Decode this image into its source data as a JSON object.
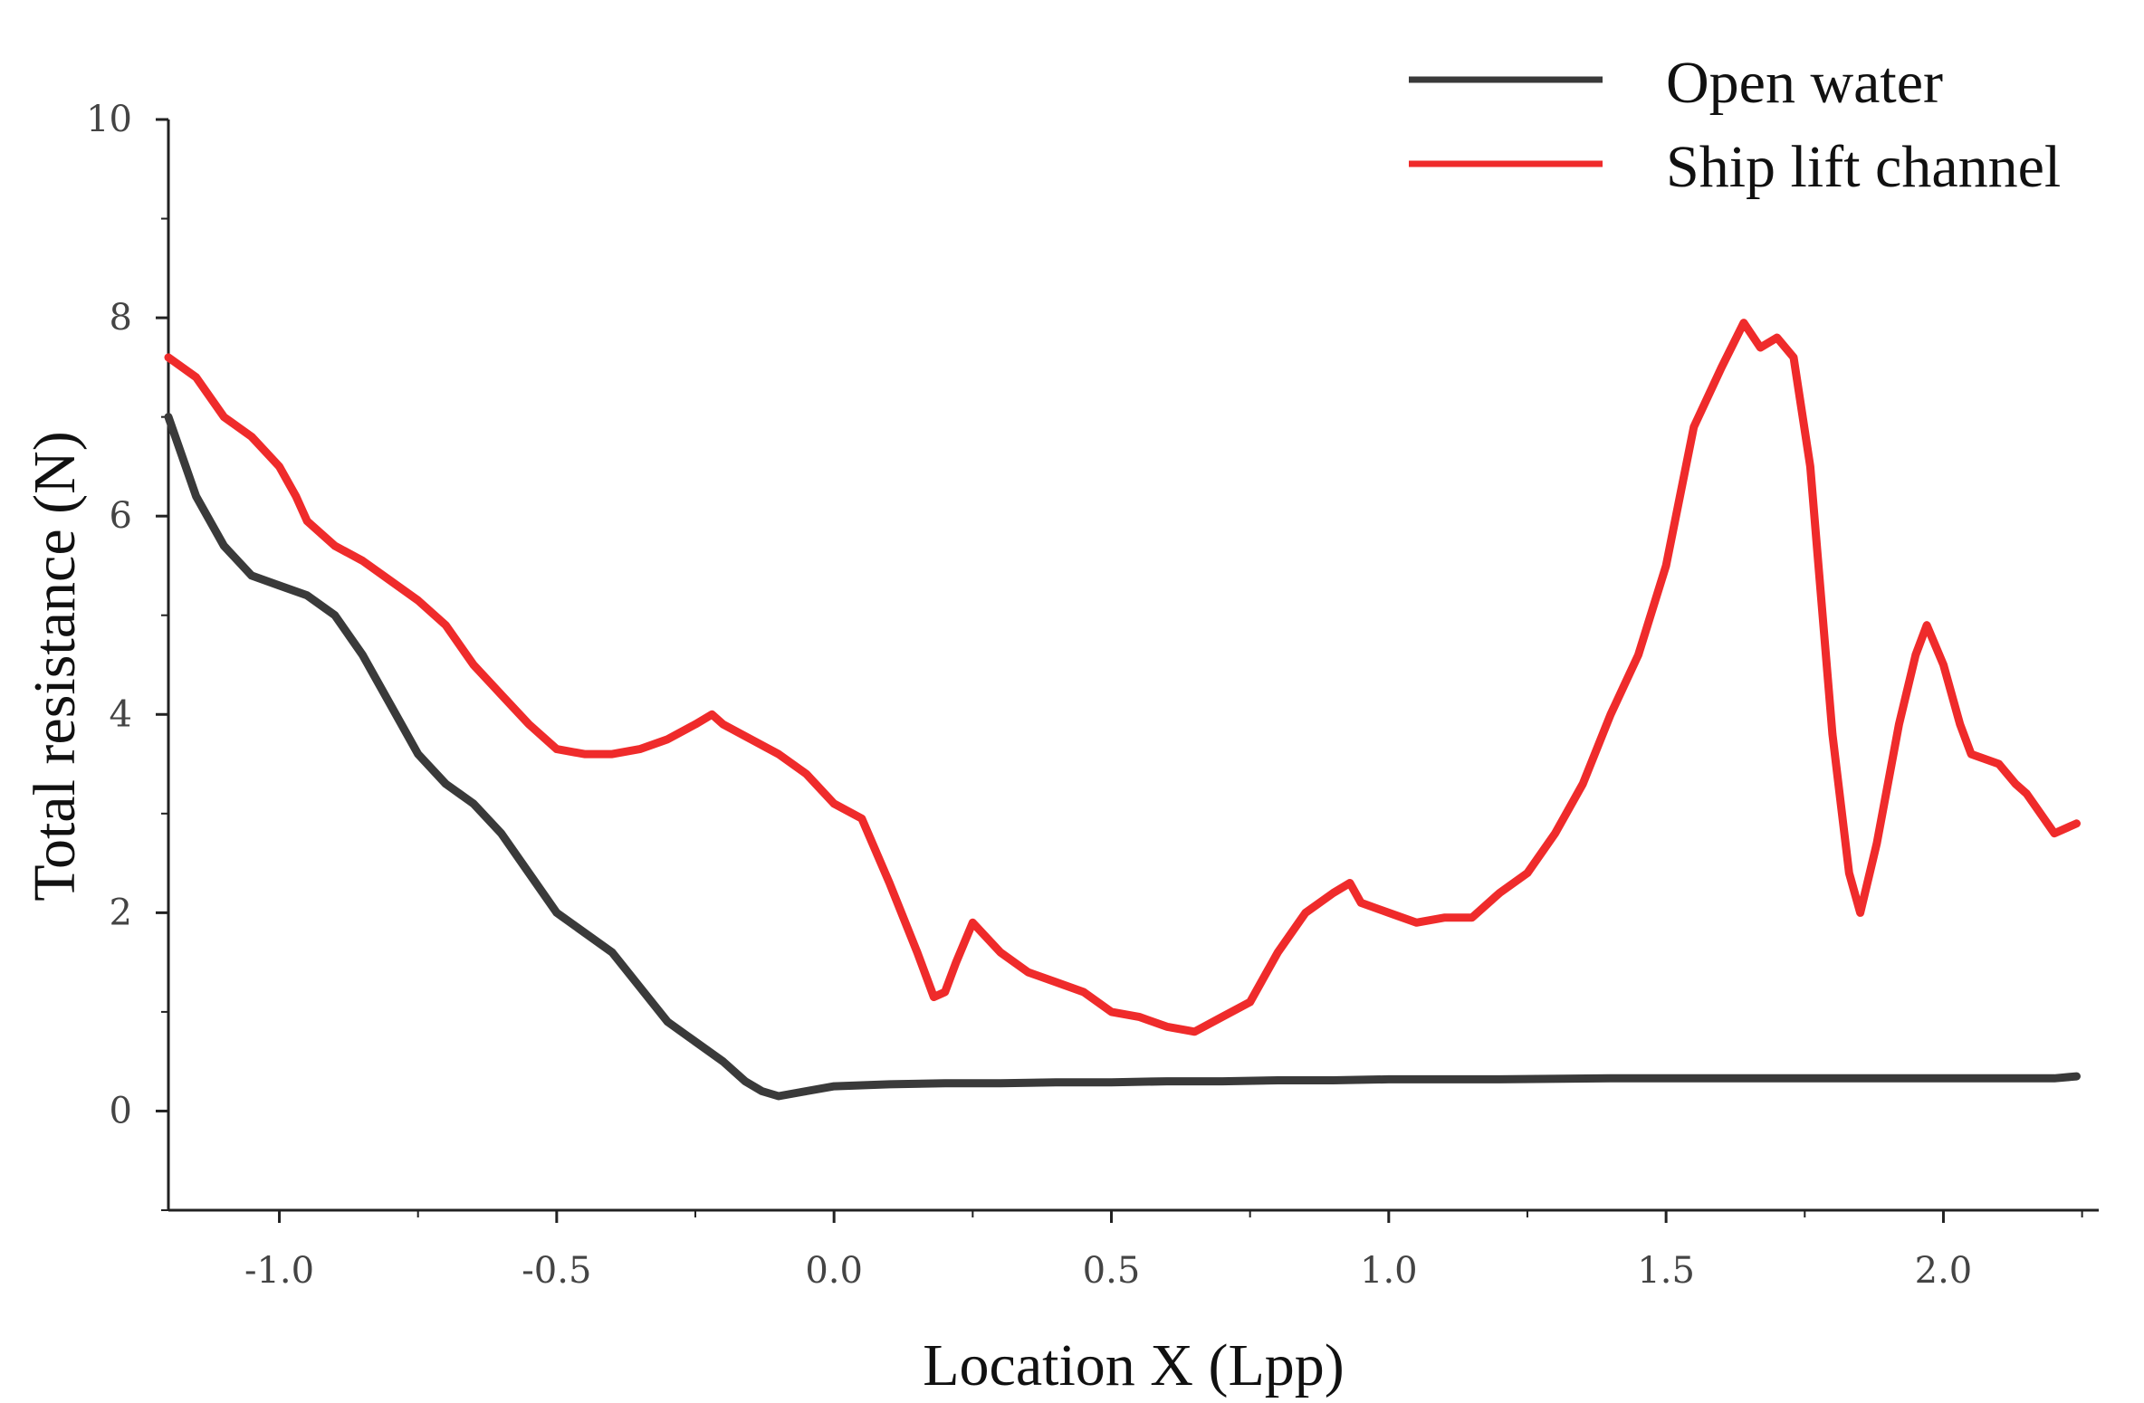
{
  "chart_data": {
    "type": "line",
    "xlabel": "Location X (Lpp)",
    "ylabel": "Total resistance (N)",
    "xlim": [
      -1.2,
      2.28
    ],
    "ylim": [
      -1,
      10
    ],
    "x_ticks": [
      -1.0,
      -0.5,
      0.0,
      0.5,
      1.0,
      1.5,
      2.0
    ],
    "x_tick_labels": [
      "-1.0",
      "-0.5",
      "0.0",
      "0.5",
      "1.0",
      "1.5",
      "2.0"
    ],
    "y_ticks": [
      0,
      2,
      4,
      6,
      8,
      10
    ],
    "y_tick_labels": [
      "0",
      "2",
      "4",
      "6",
      "8",
      "10"
    ],
    "grid": false,
    "legend_position": "top-right",
    "series": [
      {
        "name": "Open water",
        "color": "#3a3a3a",
        "x": [
          -1.2,
          -1.15,
          -1.1,
          -1.05,
          -1.0,
          -0.95,
          -0.9,
          -0.85,
          -0.8,
          -0.75,
          -0.7,
          -0.65,
          -0.6,
          -0.55,
          -0.5,
          -0.45,
          -0.4,
          -0.35,
          -0.3,
          -0.25,
          -0.2,
          -0.16,
          -0.13,
          -0.1,
          -0.05,
          0.0,
          0.1,
          0.2,
          0.3,
          0.4,
          0.5,
          0.6,
          0.7,
          0.8,
          0.9,
          1.0,
          1.2,
          1.4,
          1.6,
          1.8,
          2.0,
          2.2,
          2.24
        ],
        "y": [
          7.0,
          6.2,
          5.7,
          5.4,
          5.3,
          5.2,
          5.0,
          4.6,
          4.1,
          3.6,
          3.3,
          3.1,
          2.8,
          2.4,
          2.0,
          1.8,
          1.6,
          1.25,
          0.9,
          0.7,
          0.5,
          0.3,
          0.2,
          0.15,
          0.2,
          0.25,
          0.27,
          0.28,
          0.28,
          0.29,
          0.29,
          0.3,
          0.3,
          0.31,
          0.31,
          0.32,
          0.32,
          0.33,
          0.33,
          0.33,
          0.33,
          0.33,
          0.35
        ]
      },
      {
        "name": "Ship lift channel",
        "color": "#ef2b2b",
        "x": [
          -1.2,
          -1.15,
          -1.1,
          -1.05,
          -1.0,
          -0.97,
          -0.95,
          -0.9,
          -0.85,
          -0.8,
          -0.75,
          -0.7,
          -0.65,
          -0.6,
          -0.55,
          -0.5,
          -0.45,
          -0.4,
          -0.35,
          -0.3,
          -0.25,
          -0.22,
          -0.2,
          -0.15,
          -0.1,
          -0.05,
          0.0,
          0.05,
          0.1,
          0.15,
          0.18,
          0.2,
          0.22,
          0.25,
          0.3,
          0.35,
          0.4,
          0.45,
          0.5,
          0.55,
          0.6,
          0.65,
          0.7,
          0.75,
          0.8,
          0.85,
          0.9,
          0.93,
          0.95,
          1.0,
          1.05,
          1.1,
          1.15,
          1.2,
          1.25,
          1.3,
          1.35,
          1.4,
          1.45,
          1.5,
          1.55,
          1.6,
          1.64,
          1.67,
          1.7,
          1.73,
          1.76,
          1.8,
          1.83,
          1.85,
          1.88,
          1.92,
          1.95,
          1.97,
          2.0,
          2.03,
          2.05,
          2.1,
          2.13,
          2.15,
          2.2,
          2.24
        ],
        "y": [
          7.6,
          7.4,
          7.0,
          6.8,
          6.5,
          6.2,
          5.95,
          5.7,
          5.55,
          5.35,
          5.15,
          4.9,
          4.5,
          4.2,
          3.9,
          3.65,
          3.6,
          3.6,
          3.65,
          3.75,
          3.9,
          4.0,
          3.9,
          3.75,
          3.6,
          3.4,
          3.1,
          2.95,
          2.3,
          1.6,
          1.15,
          1.2,
          1.5,
          1.9,
          1.6,
          1.4,
          1.3,
          1.2,
          1.0,
          0.95,
          0.85,
          0.8,
          0.95,
          1.1,
          1.6,
          2.0,
          2.2,
          2.3,
          2.1,
          2.0,
          1.9,
          1.95,
          1.95,
          2.2,
          2.4,
          2.8,
          3.3,
          4.0,
          4.6,
          5.5,
          6.9,
          7.5,
          7.95,
          7.7,
          7.8,
          7.6,
          6.5,
          3.8,
          2.4,
          2.0,
          2.7,
          3.9,
          4.6,
          4.9,
          4.5,
          3.9,
          3.6,
          3.5,
          3.3,
          3.2,
          2.8,
          2.9
        ]
      }
    ]
  }
}
